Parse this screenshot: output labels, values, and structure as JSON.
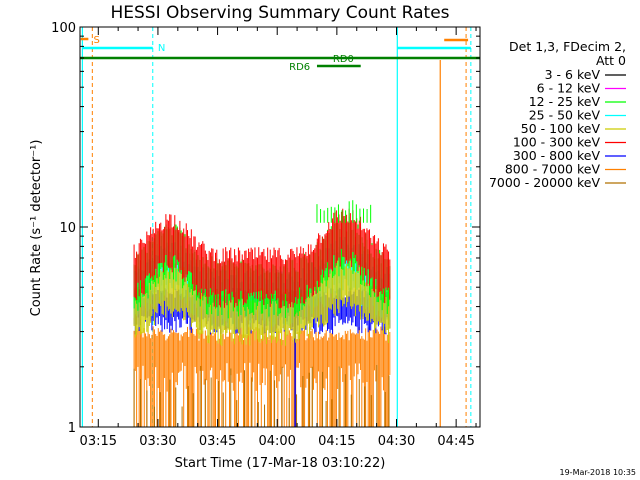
{
  "chart_data": {
    "type": "line",
    "title": "HESSI Observing Summary Count Rates",
    "xlabel": "Start Time (17-Mar-18 03:10:22)",
    "ylabel": "Count Rate (s⁻¹ detector⁻¹)",
    "yscale": "log",
    "ylim": [
      1,
      100
    ],
    "xlim_minutes": [
      3.17,
      4.8
    ],
    "x_ticks": [
      "03:15",
      "03:30",
      "03:45",
      "04:00",
      "04:15",
      "04:30",
      "04:45"
    ],
    "x_tick_minutes": [
      195,
      210,
      225,
      240,
      255,
      270,
      285
    ],
    "x_range_minutes": [
      190.4,
      291.0
    ],
    "y_ticks": [
      "1",
      "10",
      "100"
    ],
    "legend_header": [
      "Det 1,3, FDecim 2,",
      "Att 0"
    ],
    "series": [
      {
        "name": "3 - 6 keV",
        "color": "#000000",
        "values": [
          7.0,
          9.5,
          7.0,
          10.5,
          7.0
        ]
      },
      {
        "name": "6 - 12 keV",
        "color": "#ff00ff",
        "values": [
          7.0,
          9.5,
          7.0,
          10.5,
          7.0
        ]
      },
      {
        "name": "12 - 25 keV",
        "color": "#00ff00",
        "values": [
          6.8,
          9.3,
          6.9,
          10.8,
          6.8
        ]
      },
      {
        "name": "25 - 50 keV",
        "color": "#00ffff",
        "values": [
          6.5,
          8.5,
          6.4,
          9.0,
          6.4
        ]
      },
      {
        "name": "50 - 100 keV",
        "color": "#cccc00",
        "values": [
          5.8,
          7.0,
          5.8,
          7.5,
          5.8
        ]
      },
      {
        "name": "100 - 300 keV",
        "color": "#ff0000",
        "values": [
          7.5,
          10.0,
          7.0,
          11.0,
          7.5
        ]
      },
      {
        "name": "300 - 800 keV",
        "color": "#0000ff",
        "values": [
          4.5,
          4.6,
          4.5,
          4.8,
          4.5
        ]
      },
      {
        "name": "800 - 7000 keV",
        "color": "#ff8000",
        "values": [
          2.5,
          2.6,
          2.5,
          2.6,
          2.5
        ]
      },
      {
        "name": "7000 - 20000 keV",
        "color": "#b07000",
        "values": [
          1.3,
          1.3,
          1.3,
          1.3,
          1.3
        ]
      }
    ],
    "series_time_minutes": [
      203,
      214,
      232,
      253,
      266
    ],
    "annotations": {
      "saa_label": "S",
      "night_label": "N",
      "rd0_label": "RD0",
      "rd6_label": "RD6"
    },
    "grid": false,
    "legend_placement": "right"
  },
  "footer": {
    "timestamp": "19-Mar-2018 10:35"
  }
}
